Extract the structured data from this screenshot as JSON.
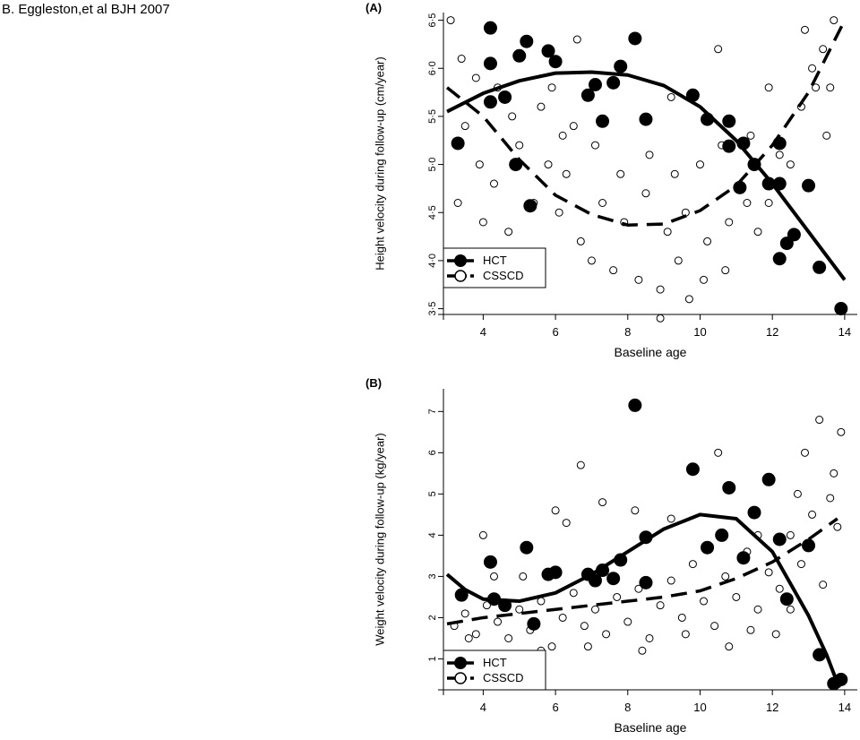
{
  "citation": "B. Eggleston,et al  BJH 2007",
  "chart_data": [
    {
      "panel_label": "(A)",
      "type": "scatter",
      "xlabel": "Baseline age",
      "ylabel": "Height velocity during follow-up (cm/year)",
      "xlim": [
        2.9,
        14.35
      ],
      "ylim": [
        3.44,
        6.58
      ],
      "xticks": [
        4,
        6,
        8,
        10,
        12,
        14
      ],
      "yticks": [
        3.5,
        4.0,
        4.5,
        5.0,
        5.5,
        6.0,
        6.5
      ],
      "ytick_labels": [
        "3·5",
        "4·0",
        "4·5",
        "5·0",
        "5·5",
        "6·0",
        "6·5"
      ],
      "grid": false,
      "legend_position": "bottom-left",
      "series": [
        {
          "name": "HCT",
          "marker": "filled-circle",
          "points": [
            [
              3.3,
              5.22
            ],
            [
              4.2,
              6.42
            ],
            [
              4.2,
              6.05
            ],
            [
              4.6,
              5.7
            ],
            [
              4.2,
              5.65
            ],
            [
              4.9,
              5.0
            ],
            [
              5.0,
              6.13
            ],
            [
              5.2,
              6.28
            ],
            [
              5.3,
              4.57
            ],
            [
              5.8,
              6.18
            ],
            [
              6.0,
              6.07
            ],
            [
              6.9,
              5.72
            ],
            [
              7.1,
              5.83
            ],
            [
              7.3,
              5.45
            ],
            [
              7.6,
              5.85
            ],
            [
              7.8,
              6.02
            ],
            [
              8.2,
              6.31
            ],
            [
              8.5,
              5.47
            ],
            [
              9.8,
              5.72
            ],
            [
              10.2,
              5.47
            ],
            [
              10.8,
              5.45
            ],
            [
              10.8,
              5.19
            ],
            [
              11.1,
              4.76
            ],
            [
              11.2,
              5.22
            ],
            [
              11.5,
              5.0
            ],
            [
              11.9,
              4.8
            ],
            [
              12.2,
              5.22
            ],
            [
              12.2,
              4.8
            ],
            [
              12.2,
              4.02
            ],
            [
              12.4,
              4.18
            ],
            [
              12.6,
              4.27
            ],
            [
              13.0,
              4.78
            ],
            [
              13.3,
              3.93
            ],
            [
              13.9,
              3.5
            ]
          ],
          "trend": "solid",
          "trend_curve": [
            [
              3.0,
              5.55
            ],
            [
              4.0,
              5.74
            ],
            [
              5.0,
              5.87
            ],
            [
              6.0,
              5.95
            ],
            [
              7.0,
              5.96
            ],
            [
              8.0,
              5.93
            ],
            [
              9.0,
              5.82
            ],
            [
              10.0,
              5.6
            ],
            [
              11.0,
              5.25
            ],
            [
              12.0,
              4.8
            ],
            [
              13.0,
              4.3
            ],
            [
              14.0,
              3.8
            ]
          ]
        },
        {
          "name": "CSSCD",
          "marker": "open-circle",
          "points": [
            [
              3.1,
              6.5
            ],
            [
              3.4,
              6.1
            ],
            [
              3.8,
              5.9
            ],
            [
              4.4,
              5.8
            ],
            [
              3.5,
              5.4
            ],
            [
              4.8,
              5.5
            ],
            [
              5.6,
              5.6
            ],
            [
              6.5,
              5.4
            ],
            [
              3.9,
              5.0
            ],
            [
              4.3,
              4.8
            ],
            [
              5.0,
              5.2
            ],
            [
              5.8,
              5.0
            ],
            [
              6.3,
              4.9
            ],
            [
              3.3,
              4.6
            ],
            [
              4.0,
              4.4
            ],
            [
              4.7,
              4.3
            ],
            [
              5.4,
              4.6
            ],
            [
              6.1,
              4.5
            ],
            [
              6.7,
              4.2
            ],
            [
              7.3,
              4.6
            ],
            [
              7.9,
              4.4
            ],
            [
              8.5,
              4.7
            ],
            [
              9.1,
              4.3
            ],
            [
              9.6,
              4.5
            ],
            [
              10.2,
              4.2
            ],
            [
              10.8,
              4.4
            ],
            [
              11.3,
              4.6
            ],
            [
              7.0,
              4.0
            ],
            [
              7.6,
              3.9
            ],
            [
              8.3,
              3.8
            ],
            [
              8.9,
              3.7
            ],
            [
              9.4,
              4.0
            ],
            [
              10.1,
              3.8
            ],
            [
              10.7,
              3.9
            ],
            [
              11.6,
              4.3
            ],
            [
              6.2,
              5.3
            ],
            [
              7.1,
              5.2
            ],
            [
              7.8,
              4.9
            ],
            [
              8.6,
              5.1
            ],
            [
              9.3,
              4.9
            ],
            [
              10.0,
              5.0
            ],
            [
              10.6,
              5.2
            ],
            [
              11.4,
              5.3
            ],
            [
              12.2,
              5.1
            ],
            [
              12.8,
              5.6
            ],
            [
              13.1,
              6.0
            ],
            [
              13.5,
              5.3
            ],
            [
              12.9,
              6.4
            ],
            [
              13.4,
              6.2
            ],
            [
              13.7,
              6.5
            ],
            [
              13.2,
              5.8
            ],
            [
              13.6,
              5.8
            ],
            [
              12.5,
              5.0
            ],
            [
              11.9,
              4.6
            ],
            [
              8.9,
              3.4
            ],
            [
              9.7,
              3.6
            ],
            [
              5.9,
              5.8
            ],
            [
              6.6,
              6.3
            ],
            [
              9.2,
              5.7
            ],
            [
              10.5,
              6.2
            ],
            [
              11.9,
              5.8
            ]
          ],
          "trend": "dashed",
          "trend_curve": [
            [
              3.0,
              5.8
            ],
            [
              4.0,
              5.5
            ],
            [
              5.0,
              5.05
            ],
            [
              6.0,
              4.68
            ],
            [
              7.0,
              4.48
            ],
            [
              8.0,
              4.37
            ],
            [
              9.0,
              4.38
            ],
            [
              10.0,
              4.52
            ],
            [
              11.0,
              4.78
            ],
            [
              12.0,
              5.2
            ],
            [
              13.0,
              5.75
            ],
            [
              14.0,
              6.5
            ]
          ]
        }
      ]
    },
    {
      "panel_label": "(B)",
      "type": "scatter",
      "xlabel": "Baseline age",
      "ylabel": "Weight velocity during follow-up (kg/year)",
      "xlim": [
        2.9,
        14.35
      ],
      "ylim": [
        0.25,
        7.55
      ],
      "xticks": [
        4,
        6,
        8,
        10,
        12,
        14
      ],
      "yticks": [
        1,
        2,
        3,
        4,
        5,
        6,
        7
      ],
      "ytick_labels": [
        "1",
        "2",
        "3",
        "4",
        "5",
        "6",
        "7"
      ],
      "grid": false,
      "legend_position": "bottom-left",
      "series": [
        {
          "name": "HCT",
          "marker": "filled-circle",
          "points": [
            [
              3.4,
              2.55
            ],
            [
              4.2,
              3.35
            ],
            [
              4.3,
              2.45
            ],
            [
              4.6,
              2.3
            ],
            [
              5.2,
              3.7
            ],
            [
              5.4,
              1.85
            ],
            [
              5.8,
              3.05
            ],
            [
              6.0,
              3.1
            ],
            [
              6.9,
              3.05
            ],
            [
              7.1,
              2.9
            ],
            [
              7.3,
              3.15
            ],
            [
              7.6,
              2.95
            ],
            [
              7.8,
              3.4
            ],
            [
              8.2,
              7.15
            ],
            [
              8.5,
              3.95
            ],
            [
              8.5,
              2.85
            ],
            [
              9.8,
              5.6
            ],
            [
              10.2,
              3.7
            ],
            [
              10.6,
              4.0
            ],
            [
              10.8,
              5.15
            ],
            [
              11.2,
              3.45
            ],
            [
              11.5,
              4.55
            ],
            [
              11.9,
              5.35
            ],
            [
              12.2,
              3.9
            ],
            [
              12.4,
              2.45
            ],
            [
              13.0,
              3.75
            ],
            [
              13.3,
              1.1
            ],
            [
              13.7,
              0.4
            ],
            [
              13.9,
              0.5
            ]
          ],
          "trend": "solid",
          "trend_curve": [
            [
              3.0,
              3.05
            ],
            [
              3.5,
              2.68
            ],
            [
              4.0,
              2.45
            ],
            [
              5.0,
              2.4
            ],
            [
              6.0,
              2.6
            ],
            [
              7.0,
              3.05
            ],
            [
              8.0,
              3.6
            ],
            [
              9.0,
              4.15
            ],
            [
              10.0,
              4.5
            ],
            [
              11.0,
              4.4
            ],
            [
              12.0,
              3.6
            ],
            [
              13.0,
              2.05
            ],
            [
              13.5,
              1.1
            ],
            [
              13.85,
              0.3
            ]
          ]
        },
        {
          "name": "CSSCD",
          "marker": "open-circle",
          "points": [
            [
              3.2,
              1.8
            ],
            [
              3.5,
              2.1
            ],
            [
              3.8,
              1.6
            ],
            [
              4.1,
              2.3
            ],
            [
              4.4,
              1.9
            ],
            [
              4.7,
              1.5
            ],
            [
              5.0,
              2.2
            ],
            [
              5.3,
              1.7
            ],
            [
              5.6,
              2.4
            ],
            [
              5.9,
              1.3
            ],
            [
              6.2,
              2.0
            ],
            [
              6.5,
              2.6
            ],
            [
              6.8,
              1.8
            ],
            [
              7.1,
              2.2
            ],
            [
              7.4,
              1.6
            ],
            [
              7.7,
              2.5
            ],
            [
              8.0,
              1.9
            ],
            [
              8.3,
              2.7
            ],
            [
              8.6,
              1.5
            ],
            [
              8.9,
              2.3
            ],
            [
              9.2,
              2.9
            ],
            [
              9.5,
              2.0
            ],
            [
              9.8,
              3.3
            ],
            [
              10.1,
              2.4
            ],
            [
              10.4,
              1.8
            ],
            [
              10.7,
              3.0
            ],
            [
              11.0,
              2.5
            ],
            [
              11.3,
              3.6
            ],
            [
              11.6,
              2.2
            ],
            [
              11.9,
              3.1
            ],
            [
              12.2,
              2.7
            ],
            [
              12.5,
              4.0
            ],
            [
              12.8,
              3.3
            ],
            [
              13.1,
              4.5
            ],
            [
              13.4,
              2.8
            ],
            [
              13.7,
              5.5
            ],
            [
              13.9,
              6.5
            ],
            [
              13.6,
              4.9
            ],
            [
              13.3,
              6.8
            ],
            [
              12.9,
              6.0
            ],
            [
              13.8,
              4.2
            ],
            [
              12.7,
              5.0
            ],
            [
              4.0,
              4.0
            ],
            [
              4.3,
              3.0
            ],
            [
              6.0,
              4.6
            ],
            [
              6.7,
              5.7
            ],
            [
              6.3,
              4.3
            ],
            [
              7.3,
              4.8
            ],
            [
              8.2,
              4.6
            ],
            [
              9.2,
              4.4
            ],
            [
              10.5,
              6.0
            ],
            [
              11.6,
              4.0
            ],
            [
              5.1,
              3.0
            ],
            [
              3.6,
              1.5
            ],
            [
              9.6,
              1.6
            ],
            [
              10.8,
              1.3
            ],
            [
              11.4,
              1.7
            ],
            [
              12.5,
              2.2
            ],
            [
              8.4,
              1.2
            ],
            [
              6.9,
              1.3
            ],
            [
              5.6,
              1.2
            ],
            [
              12.1,
              1.6
            ]
          ],
          "trend": "dashed",
          "trend_curve": [
            [
              3.0,
              1.85
            ],
            [
              4.0,
              2.0
            ],
            [
              5.0,
              2.1
            ],
            [
              6.0,
              2.2
            ],
            [
              7.0,
              2.3
            ],
            [
              8.0,
              2.4
            ],
            [
              9.0,
              2.5
            ],
            [
              10.0,
              2.65
            ],
            [
              11.0,
              2.95
            ],
            [
              12.0,
              3.35
            ],
            [
              13.0,
              3.9
            ],
            [
              13.8,
              4.4
            ]
          ]
        }
      ]
    }
  ]
}
